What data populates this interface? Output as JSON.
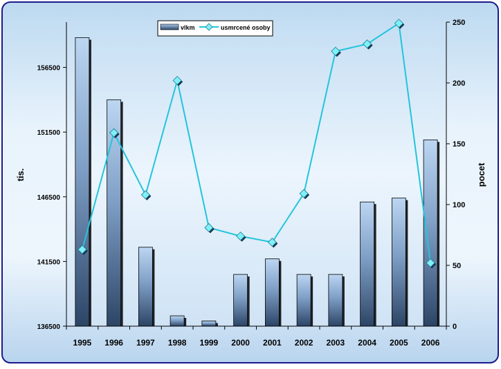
{
  "chart_data": {
    "type": "bar+line",
    "categories": [
      "1995",
      "1996",
      "1997",
      "1998",
      "1999",
      "2000",
      "2001",
      "2002",
      "2003",
      "2004",
      "2005",
      "2006"
    ],
    "series": [
      {
        "name": "vlkm",
        "type": "bar",
        "axis": "left",
        "color": "#4a6a94",
        "values": [
          158800,
          154000,
          142600,
          137300,
          136900,
          140500,
          141700,
          140500,
          140500,
          146100,
          146400,
          150900
        ]
      },
      {
        "name": "usmrcené osoby",
        "type": "line",
        "axis": "right",
        "color": "#22c4dc",
        "marker": "diamond",
        "values": [
          63,
          159,
          108,
          202,
          81,
          74,
          69,
          109,
          226,
          232,
          249,
          52
        ]
      }
    ],
    "y_left": {
      "label": "tis.",
      "range": [
        136500,
        160000
      ],
      "ticks": [
        136500,
        141500,
        146500,
        151500,
        156500
      ],
      "tick_labels": [
        "136500",
        "141500",
        "146500",
        "151500",
        "156500"
      ]
    },
    "y_right": {
      "label": "pocet",
      "range": [
        0,
        250
      ],
      "ticks": [
        0,
        50,
        100,
        150,
        200,
        250
      ],
      "tick_labels": [
        "0",
        "50",
        "100",
        "150",
        "200",
        "250"
      ]
    },
    "legend": {
      "placement": "top-center"
    },
    "grid": false
  },
  "colors": {
    "frame_border": "#1a1a8a",
    "plot_bg_light": "#e6f2fb",
    "plot_bg_dark": "#b4d2ec",
    "bar_light": "#b9d4f0",
    "bar_dark": "#2f4a6c",
    "line": "#22c4dc",
    "marker_fill": "#7ff0f8"
  }
}
